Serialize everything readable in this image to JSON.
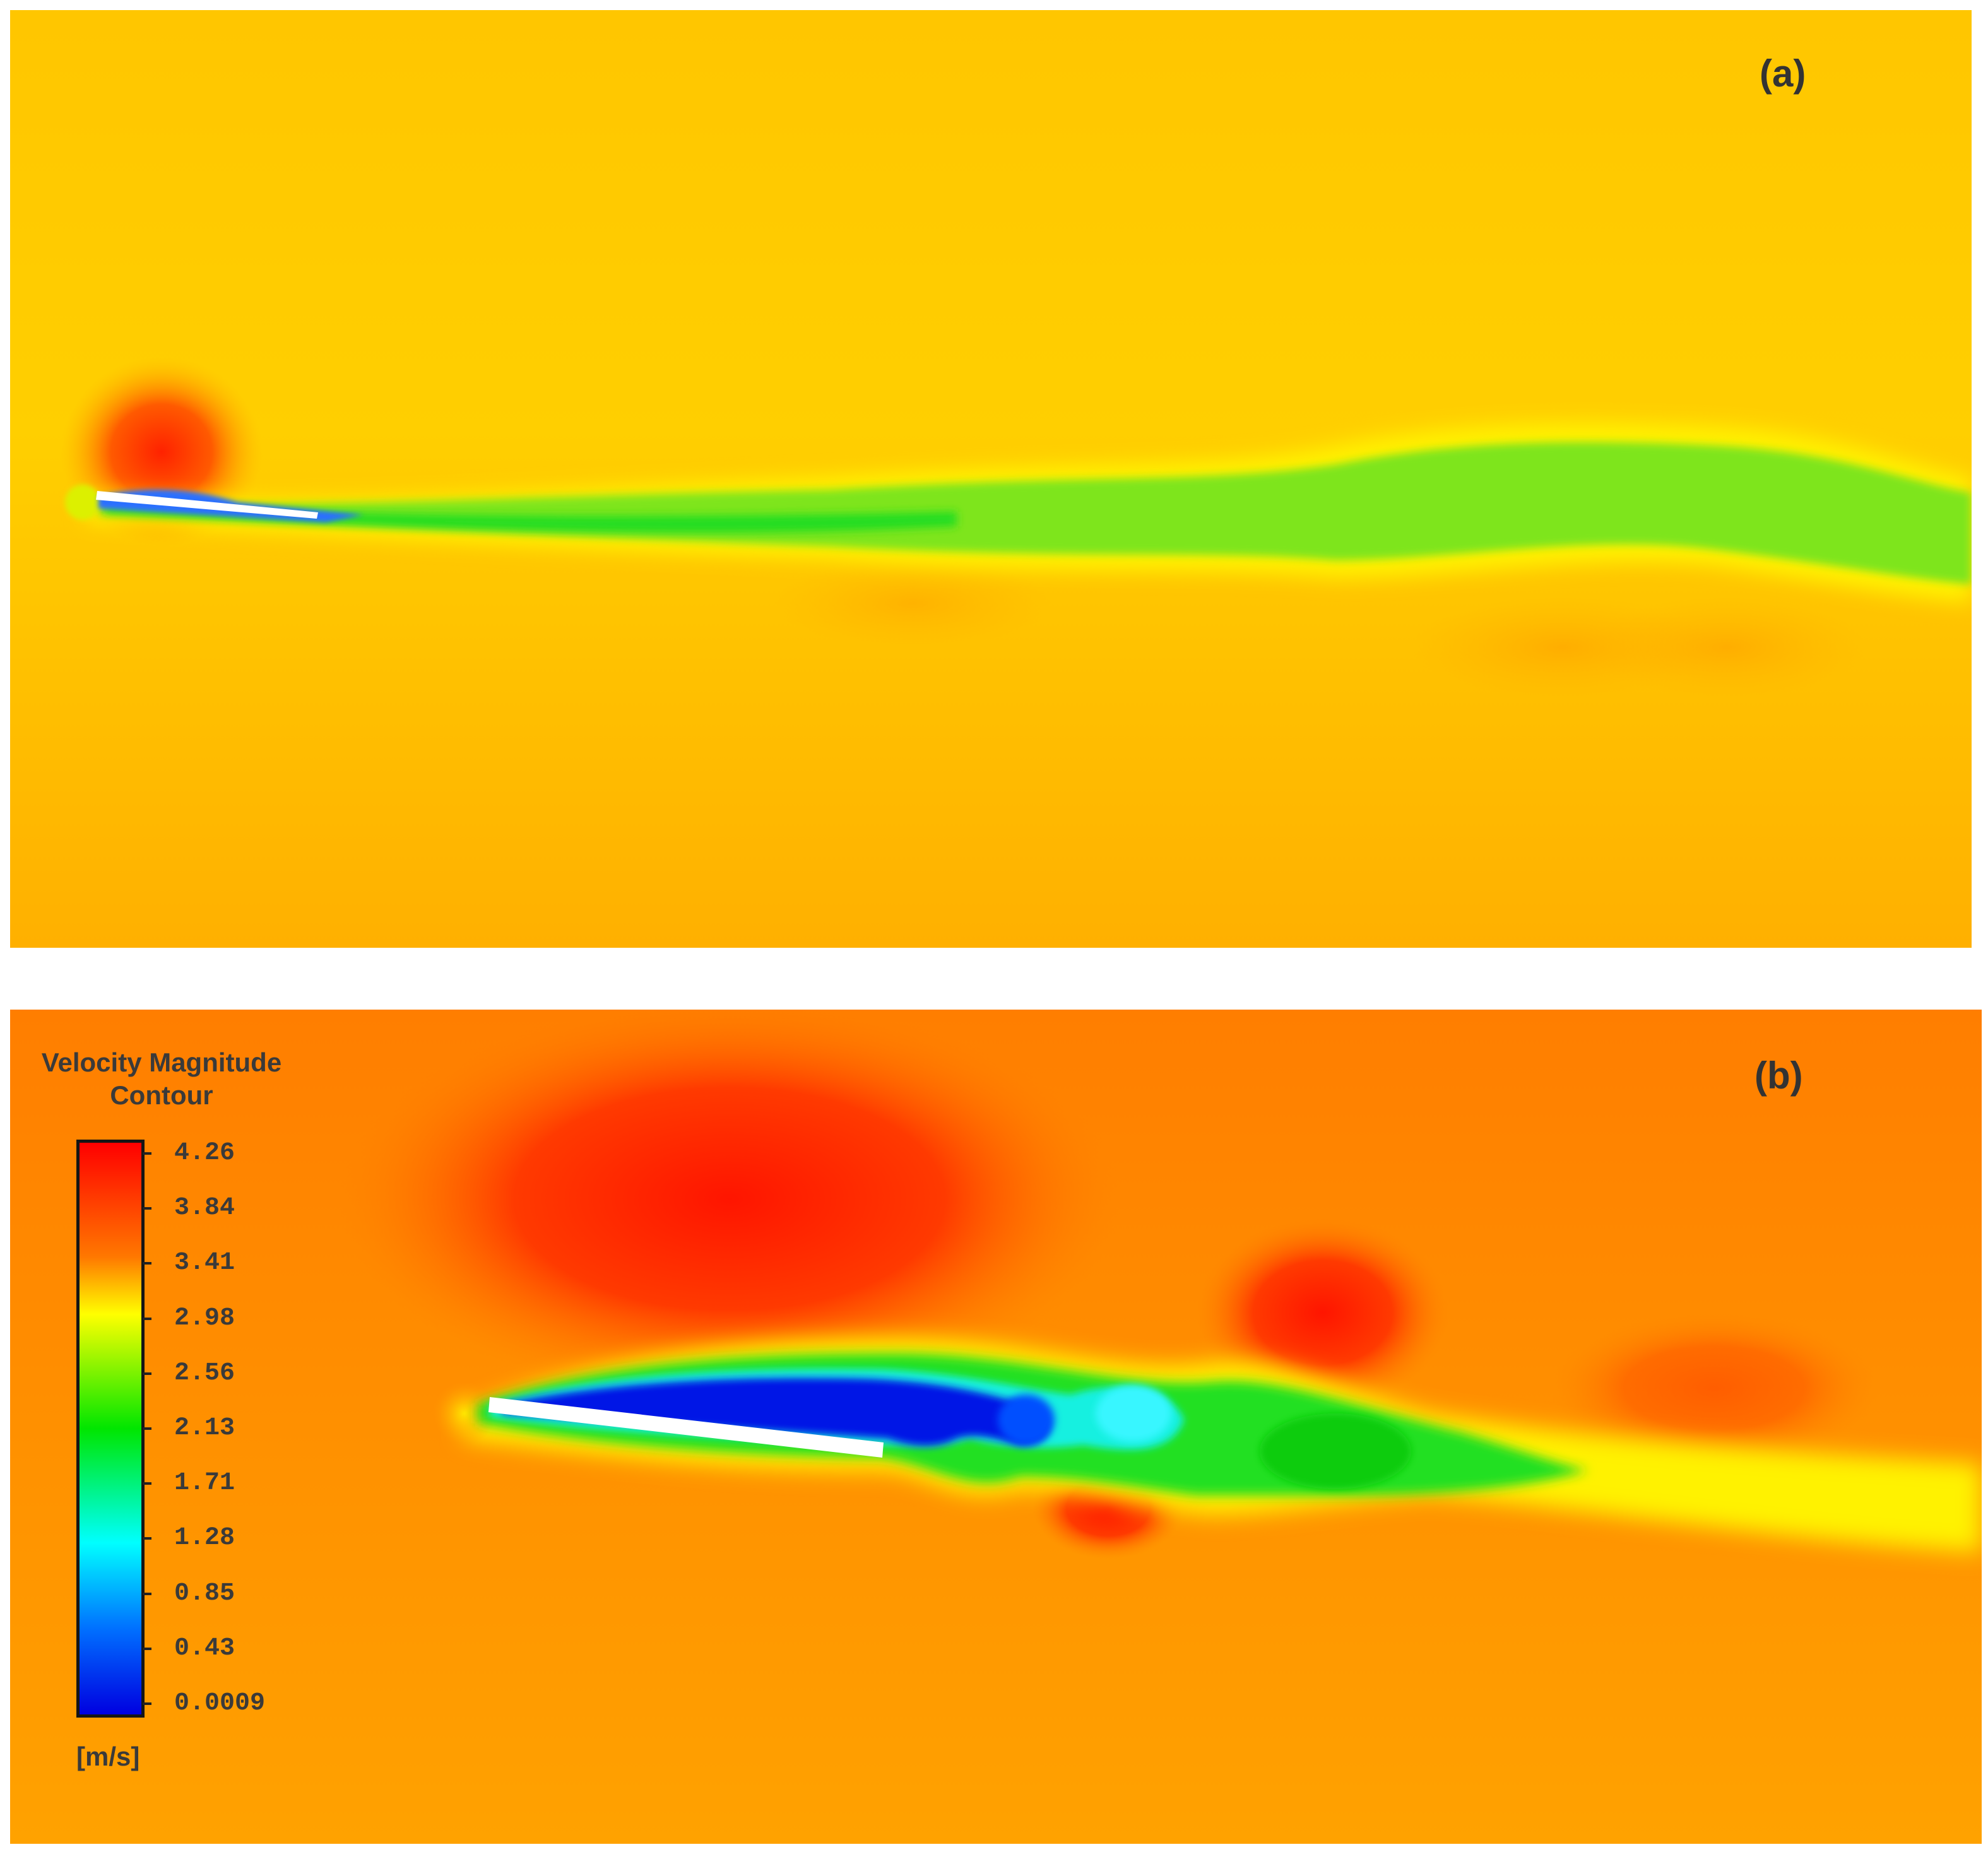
{
  "panels": [
    {
      "label": "(a)"
    },
    {
      "label": "(b)"
    }
  ],
  "legend": {
    "title_line1": "Velocity Magnitude",
    "title_line2": "Contour",
    "unit": "[m/s]",
    "ticks": [
      "4.26",
      "3.84",
      "3.41",
      "2.98",
      "2.56",
      "2.13",
      "1.71",
      "1.28",
      "0.85",
      "0.43",
      "0.0009"
    ]
  },
  "colors": {
    "freestream_a": "#ffc400",
    "freestream_b": "#ff8a00",
    "high_velocity": "#ff1a00",
    "wake": "#1ee61e",
    "low_velocity": "#0000e6",
    "plate": "#ffffff"
  }
}
